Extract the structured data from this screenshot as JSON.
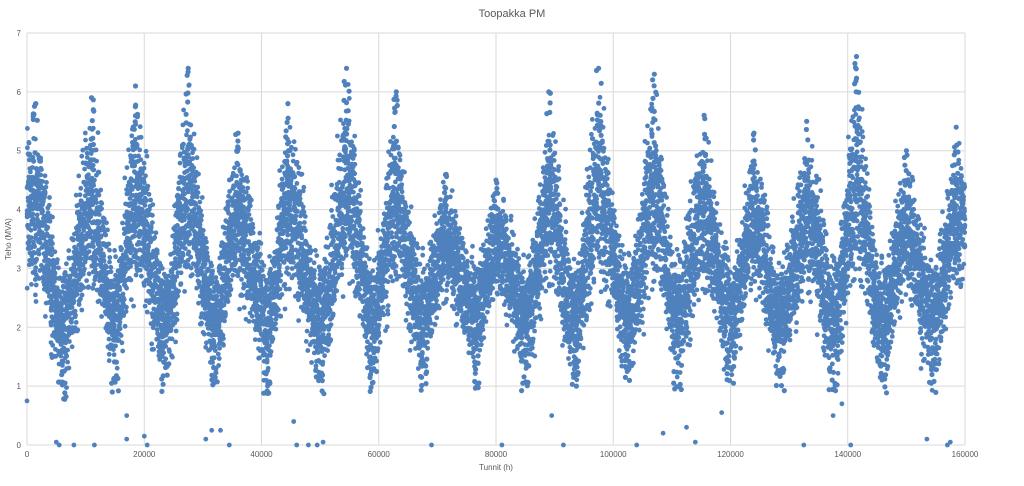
{
  "chart_data": {
    "type": "scatter",
    "title": "Toopakka PM",
    "xlabel": "Tunnit (h)",
    "ylabel": "Teho (MVA)",
    "xlim": [
      0,
      160000
    ],
    "ylim": [
      0,
      7
    ],
    "x_ticks": [
      "0",
      "20000",
      "40000",
      "60000",
      "80000",
      "100000",
      "120000",
      "140000",
      "160000"
    ],
    "y_ticks": [
      "0",
      "1",
      "2",
      "3",
      "4",
      "5",
      "6",
      "7"
    ],
    "grid": true,
    "legend": "none",
    "series_color": "#4f81bd",
    "series": [
      {
        "x_start": 0,
        "x_end": 160000,
        "period_hours": 8760,
        "peaks": [
          {
            "x": 1500,
            "y": 5.8
          },
          {
            "x": 11000,
            "y": 5.9
          },
          {
            "x": 18500,
            "y": 6.1
          },
          {
            "x": 27500,
            "y": 6.4
          },
          {
            "x": 36000,
            "y": 5.3
          },
          {
            "x": 44500,
            "y": 5.8
          },
          {
            "x": 54500,
            "y": 6.4
          },
          {
            "x": 63000,
            "y": 6.0
          },
          {
            "x": 71500,
            "y": 4.6
          },
          {
            "x": 80000,
            "y": 4.5
          },
          {
            "x": 89000,
            "y": 6.0
          },
          {
            "x": 97500,
            "y": 6.4
          },
          {
            "x": 107000,
            "y": 6.3
          },
          {
            "x": 115500,
            "y": 5.6
          },
          {
            "x": 124000,
            "y": 5.3
          },
          {
            "x": 133000,
            "y": 5.5
          },
          {
            "x": 141500,
            "y": 6.6
          },
          {
            "x": 150000,
            "y": 5.0
          },
          {
            "x": 158500,
            "y": 5.4
          }
        ],
        "troughs": [
          {
            "x": 6000,
            "y": 0.75
          },
          {
            "x": 15000,
            "y": 0.85
          },
          {
            "x": 23500,
            "y": 0.9
          },
          {
            "x": 32000,
            "y": 0.9
          },
          {
            "x": 41000,
            "y": 0.85
          },
          {
            "x": 50000,
            "y": 0.85
          },
          {
            "x": 59000,
            "y": 0.9
          },
          {
            "x": 67500,
            "y": 0.9
          },
          {
            "x": 76500,
            "y": 0.95
          },
          {
            "x": 85000,
            "y": 0.9
          },
          {
            "x": 93500,
            "y": 0.85
          },
          {
            "x": 102500,
            "y": 0.9
          },
          {
            "x": 111000,
            "y": 0.9
          },
          {
            "x": 120000,
            "y": 0.9
          },
          {
            "x": 128500,
            "y": 0.9
          },
          {
            "x": 137500,
            "y": 0.85
          },
          {
            "x": 146000,
            "y": 0.8
          },
          {
            "x": 154500,
            "y": 0.85
          }
        ],
        "outliers": [
          {
            "x": 0,
            "y": 0.75
          },
          {
            "x": 5000,
            "y": 0.05
          },
          {
            "x": 5500,
            "y": 0.0
          },
          {
            "x": 8000,
            "y": 0.0
          },
          {
            "x": 11500,
            "y": 0.0
          },
          {
            "x": 17000,
            "y": 0.1
          },
          {
            "x": 17000,
            "y": 0.5
          },
          {
            "x": 20000,
            "y": 0.15
          },
          {
            "x": 20500,
            "y": 0.0
          },
          {
            "x": 30500,
            "y": 0.1
          },
          {
            "x": 31500,
            "y": 0.25
          },
          {
            "x": 33000,
            "y": 0.25
          },
          {
            "x": 34500,
            "y": 0.0
          },
          {
            "x": 45500,
            "y": 0.4
          },
          {
            "x": 46000,
            "y": 0.0
          },
          {
            "x": 48000,
            "y": 0.0
          },
          {
            "x": 49500,
            "y": 0.0
          },
          {
            "x": 50500,
            "y": 0.05
          },
          {
            "x": 69000,
            "y": 0.0
          },
          {
            "x": 81000,
            "y": 0.0
          },
          {
            "x": 89500,
            "y": 0.5
          },
          {
            "x": 91500,
            "y": 0.0
          },
          {
            "x": 104000,
            "y": 0.0
          },
          {
            "x": 108500,
            "y": 0.2
          },
          {
            "x": 112500,
            "y": 0.3
          },
          {
            "x": 114000,
            "y": 0.05
          },
          {
            "x": 118500,
            "y": 0.55
          },
          {
            "x": 132500,
            "y": 0.0
          },
          {
            "x": 137500,
            "y": 0.5
          },
          {
            "x": 139000,
            "y": 0.7
          },
          {
            "x": 140500,
            "y": 0.0
          },
          {
            "x": 152500,
            "y": 1.3
          },
          {
            "x": 153500,
            "y": 0.1
          },
          {
            "x": 157000,
            "y": 0.0
          },
          {
            "x": 157500,
            "y": 0.05
          }
        ]
      }
    ]
  }
}
